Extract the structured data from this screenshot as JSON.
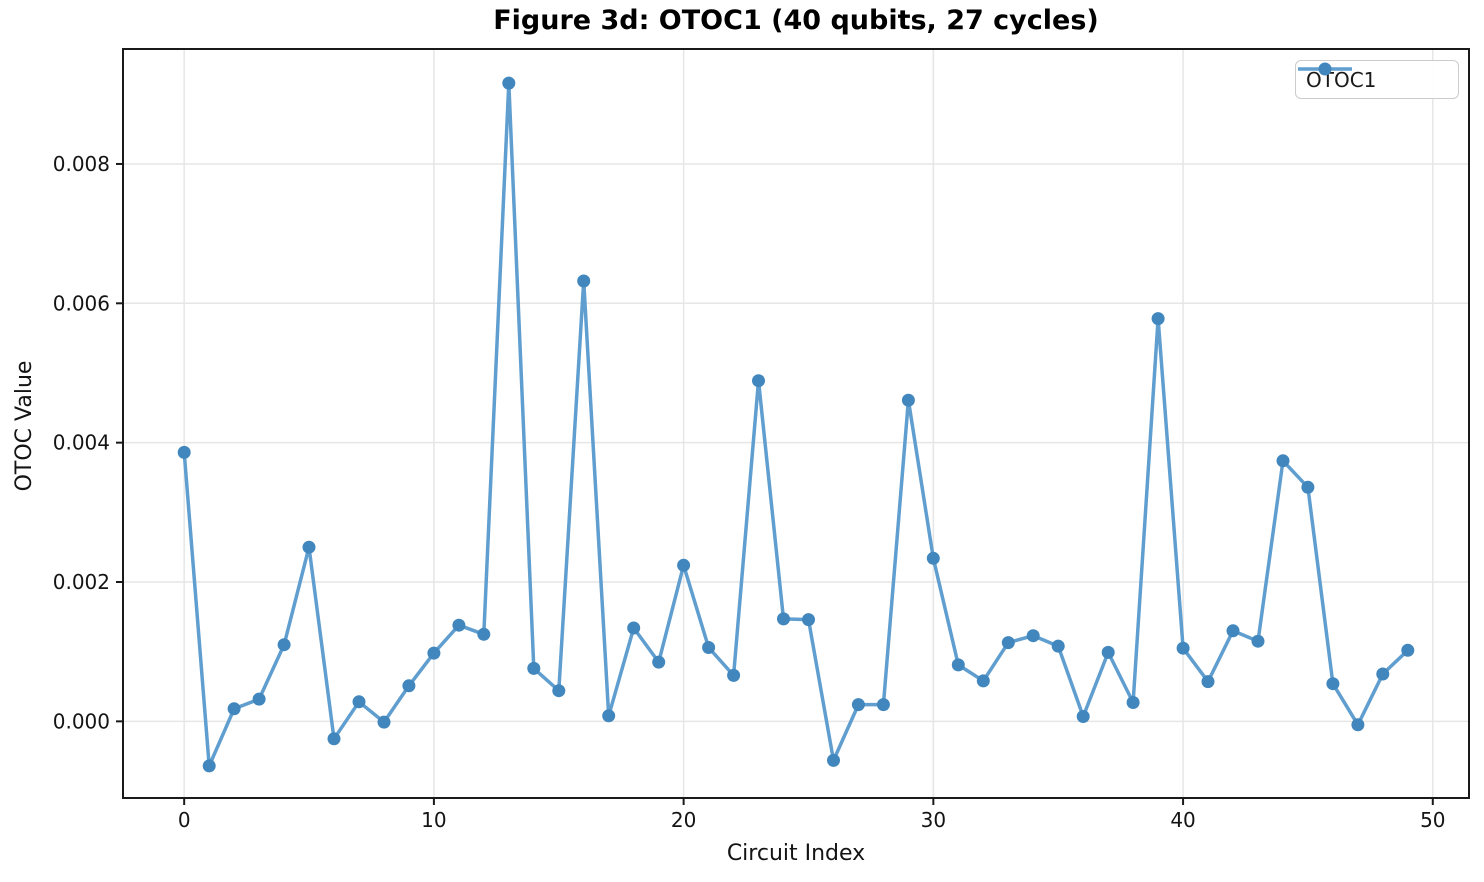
{
  "chart_data": {
    "type": "line",
    "title": "Figure 3d: OTOC1 (40 qubits, 27 cycles)",
    "xlabel": "Circuit Index",
    "ylabel": "OTOC Value",
    "legend": [
      "OTOC1"
    ],
    "legend_position": "upper right",
    "grid": true,
    "x": [
      0,
      1,
      2,
      3,
      4,
      5,
      6,
      7,
      8,
      9,
      10,
      11,
      12,
      13,
      14,
      15,
      16,
      17,
      18,
      19,
      20,
      21,
      22,
      23,
      24,
      25,
      26,
      27,
      28,
      29,
      30,
      31,
      32,
      33,
      34,
      35,
      36,
      37,
      38,
      39,
      40,
      41,
      42,
      43,
      44,
      45,
      46,
      47,
      48,
      49
    ],
    "series": [
      {
        "name": "OTOC1",
        "values": [
          0.00386,
          -0.00064,
          0.00018,
          0.00032,
          0.0011,
          0.0025,
          -0.00025,
          0.00028,
          -1e-05,
          0.00051,
          0.00098,
          0.00138,
          0.00125,
          0.00916,
          0.00076,
          0.00044,
          0.00632,
          8e-05,
          0.00134,
          0.00085,
          0.00224,
          0.00106,
          0.00066,
          0.00489,
          0.00147,
          0.00146,
          -0.00056,
          0.00024,
          0.00024,
          0.00461,
          0.00234,
          0.00081,
          0.00058,
          0.00113,
          0.00123,
          0.00108,
          7e-05,
          0.00099,
          0.00027,
          0.00578,
          0.00105,
          0.00057,
          0.0013,
          0.00115,
          0.00374,
          0.00336,
          0.00054,
          -5e-05,
          0.00068,
          0.00102
        ]
      }
    ],
    "xticks": [
      0,
      10,
      20,
      30,
      40,
      50
    ],
    "xtick_labels": [
      "0",
      "10",
      "20",
      "30",
      "40",
      "50"
    ],
    "yticks": [
      0.0,
      0.002,
      0.004,
      0.006,
      0.008
    ],
    "ytick_labels": [
      "0.000",
      "0.002",
      "0.004",
      "0.006",
      "0.008"
    ],
    "xlim": [
      -2.45,
      51.45
    ],
    "ylim": [
      -0.0011,
      0.00965
    ],
    "colors": {
      "line": "#5f9ecf",
      "marker": "#4187bd",
      "grid": "#e6e6e6",
      "spine": "#1a1a1a",
      "text": "#141414"
    }
  }
}
